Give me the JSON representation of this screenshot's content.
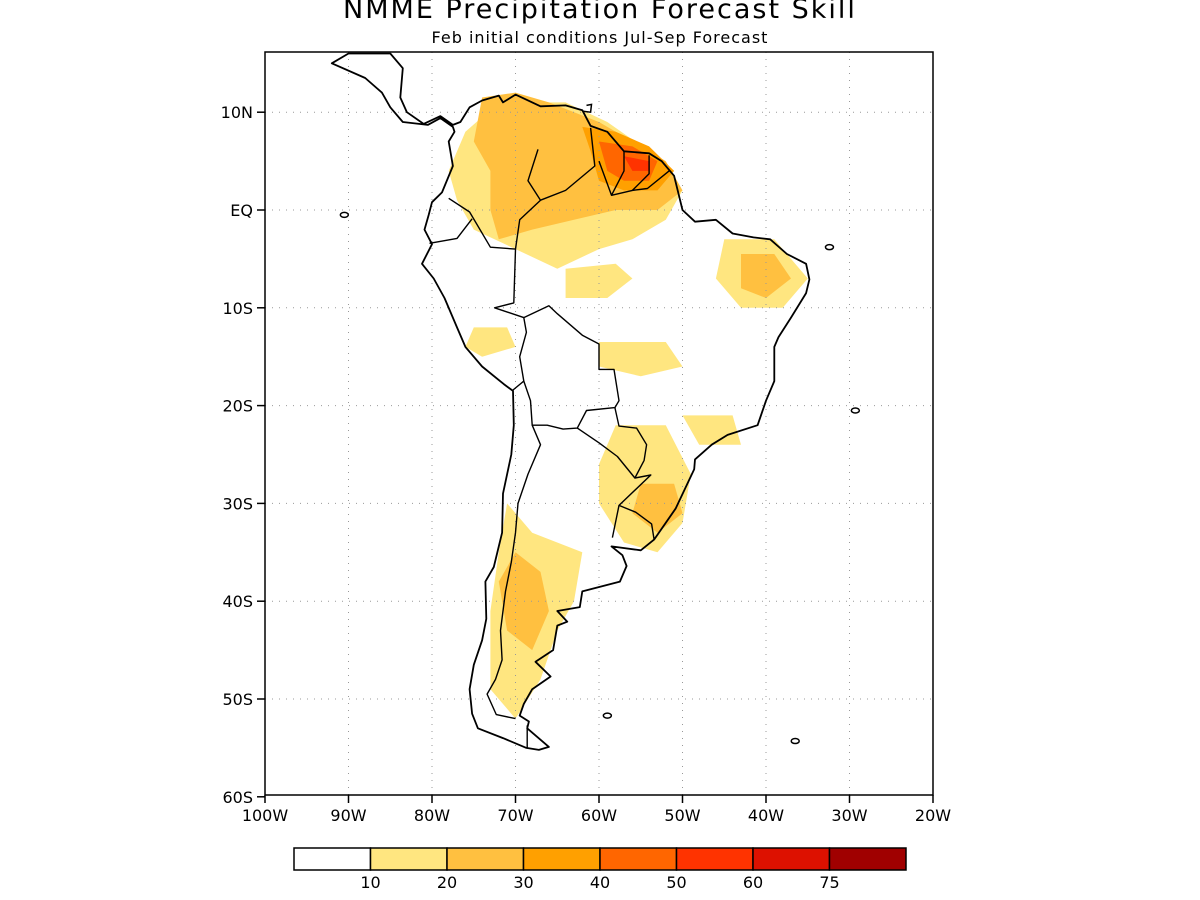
{
  "title": "NMME Precipitation Forecast Skill",
  "subtitle": "Feb initial conditions  Jul-Sep Forecast",
  "map": {
    "lon_range": [
      -100,
      -20
    ],
    "lat_range": [
      -60,
      15
    ],
    "lat_ticks": [
      {
        "value": 10,
        "label": "10N"
      },
      {
        "value": 0,
        "label": "EQ"
      },
      {
        "value": -10,
        "label": "10S"
      },
      {
        "value": -20,
        "label": "20S"
      },
      {
        "value": -30,
        "label": "30S"
      },
      {
        "value": -40,
        "label": "40S"
      },
      {
        "value": -50,
        "label": "50S"
      },
      {
        "value": -60,
        "label": "60S"
      }
    ],
    "lon_ticks": [
      {
        "value": -100,
        "label": "100W"
      },
      {
        "value": -90,
        "label": "90W"
      },
      {
        "value": -80,
        "label": "80W"
      },
      {
        "value": -70,
        "label": "70W"
      },
      {
        "value": -60,
        "label": "60W"
      },
      {
        "value": -50,
        "label": "50W"
      },
      {
        "value": -40,
        "label": "40W"
      },
      {
        "value": -30,
        "label": "30W"
      },
      {
        "value": -20,
        "label": "20W"
      }
    ]
  },
  "colorbar": {
    "colors": [
      "#ffffff",
      "#ffe680",
      "#ffc040",
      "#ffa000",
      "#ff6600",
      "#ff3300",
      "#dd1100",
      "#a00000"
    ],
    "labels": [
      "10",
      "20",
      "30",
      "40",
      "50",
      "60",
      "75"
    ]
  },
  "skill_regions": [
    {
      "level": 1,
      "points": [
        [
          -72,
          11
        ],
        [
          -64,
          11
        ],
        [
          -59,
          9
        ],
        [
          -54,
          6
        ],
        [
          -50,
          2
        ],
        [
          -52,
          -1
        ],
        [
          -56,
          -3
        ],
        [
          -60,
          -4
        ],
        [
          -65,
          -6
        ],
        [
          -70,
          -4
        ],
        [
          -75,
          -2
        ],
        [
          -77,
          1
        ],
        [
          -78,
          4
        ],
        [
          -76,
          8
        ]
      ]
    },
    {
      "level": 2,
      "points": [
        [
          -74,
          11.5
        ],
        [
          -70,
          12
        ],
        [
          -66,
          11
        ],
        [
          -60,
          9
        ],
        [
          -56,
          7
        ],
        [
          -52,
          5
        ],
        [
          -50,
          2
        ],
        [
          -53,
          0
        ],
        [
          -58,
          0
        ],
        [
          -63,
          -1
        ],
        [
          -68,
          -2
        ],
        [
          -72,
          -3
        ],
        [
          -73,
          0
        ],
        [
          -73,
          4
        ],
        [
          -75,
          7
        ]
      ]
    },
    {
      "level": 3,
      "points": [
        [
          -62,
          8.5
        ],
        [
          -58,
          8
        ],
        [
          -54,
          6.5
        ],
        [
          -51,
          4
        ],
        [
          -53,
          2
        ],
        [
          -57,
          2
        ],
        [
          -60,
          3
        ],
        [
          -61,
          6
        ]
      ]
    },
    {
      "level": 4,
      "points": [
        [
          -60,
          7
        ],
        [
          -56,
          6.5
        ],
        [
          -53,
          5
        ],
        [
          -54,
          3
        ],
        [
          -57,
          3
        ],
        [
          -59,
          4
        ]
      ]
    },
    {
      "level": 5,
      "points": [
        [
          -57,
          5.5
        ],
        [
          -54,
          5
        ],
        [
          -54,
          4
        ],
        [
          -56,
          4
        ]
      ]
    },
    {
      "level": 1,
      "points": [
        [
          -64,
          -6
        ],
        [
          -58,
          -5.5
        ],
        [
          -56,
          -7
        ],
        [
          -59,
          -9
        ],
        [
          -64,
          -9
        ]
      ]
    },
    {
      "level": 1,
      "points": [
        [
          -45,
          -3
        ],
        [
          -39,
          -3
        ],
        [
          -35,
          -7
        ],
        [
          -38,
          -10
        ],
        [
          -43,
          -10
        ],
        [
          -46,
          -7
        ]
      ]
    },
    {
      "level": 2,
      "points": [
        [
          -43,
          -4.5
        ],
        [
          -39,
          -4.5
        ],
        [
          -37,
          -7
        ],
        [
          -40,
          -9
        ],
        [
          -43,
          -8
        ]
      ]
    },
    {
      "level": 1,
      "points": [
        [
          -75,
          -12
        ],
        [
          -71,
          -12
        ],
        [
          -70,
          -14
        ],
        [
          -74,
          -15
        ],
        [
          -76,
          -14
        ]
      ]
    },
    {
      "level": 1,
      "points": [
        [
          -60,
          -13.5
        ],
        [
          -52,
          -13.5
        ],
        [
          -50,
          -16
        ],
        [
          -55,
          -17
        ],
        [
          -60,
          -16
        ]
      ]
    },
    {
      "level": 1,
      "points": [
        [
          -50,
          -21
        ],
        [
          -44,
          -21
        ],
        [
          -43,
          -24
        ],
        [
          -48,
          -24
        ]
      ]
    },
    {
      "level": 1,
      "points": [
        [
          -58,
          -22
        ],
        [
          -52,
          -22
        ],
        [
          -49,
          -27
        ],
        [
          -50,
          -32
        ],
        [
          -53,
          -35
        ],
        [
          -57,
          -34
        ],
        [
          -60,
          -30
        ],
        [
          -60,
          -26
        ]
      ]
    },
    {
      "level": 2,
      "points": [
        [
          -55,
          -28
        ],
        [
          -51,
          -28
        ],
        [
          -50,
          -31
        ],
        [
          -53,
          -33
        ],
        [
          -56,
          -31
        ]
      ]
    },
    {
      "level": 1,
      "points": [
        [
          -71,
          -30
        ],
        [
          -68,
          -33
        ],
        [
          -62,
          -35
        ],
        [
          -63,
          -40
        ],
        [
          -65,
          -43
        ],
        [
          -67,
          -48
        ],
        [
          -70,
          -52
        ],
        [
          -73,
          -49
        ],
        [
          -73,
          -41
        ],
        [
          -72,
          -35
        ]
      ]
    },
    {
      "level": 2,
      "points": [
        [
          -70,
          -35
        ],
        [
          -67,
          -37
        ],
        [
          -66,
          -41
        ],
        [
          -68,
          -45
        ],
        [
          -71,
          -43
        ],
        [
          -72,
          -38
        ]
      ]
    }
  ],
  "islands": [
    {
      "name": "galapagos",
      "lon": -90.5,
      "lat": -0.5
    },
    {
      "name": "falklands",
      "lon": -59,
      "lat": -51.7
    },
    {
      "name": "south-georgia",
      "lon": -36.5,
      "lat": -54.3
    },
    {
      "name": "fernando-de-noronha",
      "lon": -32.4,
      "lat": -3.8
    },
    {
      "name": "trindade",
      "lon": -29.3,
      "lat": -20.5
    }
  ]
}
